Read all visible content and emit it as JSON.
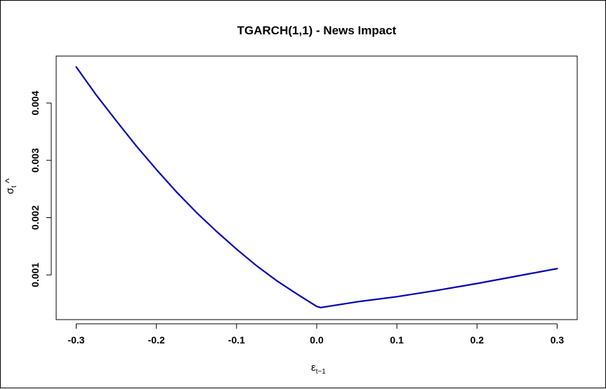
{
  "chart_data": {
    "type": "line",
    "title": "TGARCH(1,1) - News Impact",
    "xlabel": {
      "main": "ε",
      "sub": "t−1"
    },
    "ylabel": {
      "main": "σ",
      "sub": "t",
      "hat": "^"
    },
    "xlim": [
      -0.325,
      0.325
    ],
    "ylim": [
      0.00022,
      0.00482
    ],
    "x_ticks": [
      {
        "value": -0.3,
        "label": "-0.3"
      },
      {
        "value": -0.2,
        "label": "-0.2"
      },
      {
        "value": -0.1,
        "label": "-0.1"
      },
      {
        "value": 0.0,
        "label": "0.0"
      },
      {
        "value": 0.1,
        "label": "0.1"
      },
      {
        "value": 0.2,
        "label": "0.2"
      },
      {
        "value": 0.3,
        "label": "0.3"
      }
    ],
    "y_ticks": [
      {
        "value": 0.001,
        "label": "0.001"
      },
      {
        "value": 0.002,
        "label": "0.002"
      },
      {
        "value": 0.003,
        "label": "0.003"
      },
      {
        "value": 0.004,
        "label": "0.004"
      }
    ],
    "grid": false,
    "series": [
      {
        "color": "#0000b4",
        "x": [
          -0.3,
          -0.275,
          -0.25,
          -0.225,
          -0.2,
          -0.175,
          -0.15,
          -0.125,
          -0.1,
          -0.075,
          -0.05,
          -0.025,
          0.0,
          0.005,
          0.05,
          0.1,
          0.15,
          0.2,
          0.25,
          0.3
        ],
        "y": [
          0.00463,
          0.00414,
          0.00369,
          0.00325,
          0.00284,
          0.00245,
          0.00209,
          0.00176,
          0.00145,
          0.00116,
          0.0009,
          0.00067,
          0.00045,
          0.00043,
          0.00053,
          0.00062,
          0.00073,
          0.00085,
          0.00098,
          0.00111
        ]
      }
    ]
  }
}
